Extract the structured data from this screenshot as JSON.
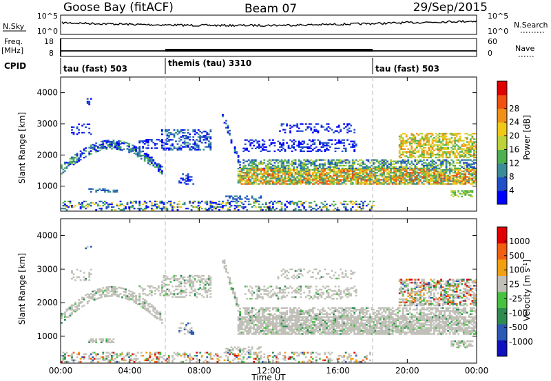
{
  "header": {
    "title": "Goose Bay (fitACF)",
    "beam": "Beam 07",
    "date": "29/Sep/2015"
  },
  "strip_labels": {
    "nsky": "N.Sky",
    "nsearch": "N.Search",
    "freq_top": "Freq.",
    "freq_unit": "[MHz]",
    "nave": "Nave",
    "cpid": "CPID"
  },
  "strip_ticks": {
    "nsky_top": "10^5",
    "nsky_bottom": "10^0",
    "nsearch_top": "10^5",
    "nsearch_bottom": "10^0",
    "freq_top": "18",
    "freq_bottom": "8",
    "nave_top": "60",
    "nave_bottom": "0"
  },
  "cpid_segments": [
    {
      "label": "tau (fast) 503",
      "start": "00:00",
      "end": "06:00"
    },
    {
      "label": "themis (tau) 3310",
      "start": "06:00",
      "end": "18:00"
    },
    {
      "label": "tau (fast) 503",
      "start": "18:00",
      "end": "00:00"
    }
  ],
  "chart_data": [
    {
      "type": "heatmap",
      "name": "power",
      "ylabel": "Slant Range [km]",
      "xlabel": "Time UT",
      "colorbar_label": "Power [dB]",
      "colorbar_ticks": [
        "4",
        "8",
        "12",
        "16",
        "20",
        "24",
        "28"
      ],
      "colorbar_colors": [
        "#0000ff",
        "#2050c8",
        "#3a8c96",
        "#4cb050",
        "#bcd238",
        "#f0c818",
        "#f09018",
        "#f05010",
        "#e00000"
      ],
      "yticks": [
        "1000",
        "2000",
        "3000",
        "4000"
      ],
      "ylim": [
        200,
        4500
      ],
      "xticks": [
        "00:00",
        "04:00",
        "08:00",
        "12:00",
        "16:00",
        "20:00",
        "00:00"
      ],
      "xlim_hours": [
        0,
        24
      ]
    },
    {
      "type": "heatmap",
      "name": "velocity",
      "ylabel": "Slant Range [km]",
      "xlabel": "Time UT",
      "colorbar_label": "Velocity [m s^-1]",
      "colorbar_ticks": [
        "1000",
        "500",
        "100",
        "25",
        "-25",
        "-100",
        "-500",
        "-1000"
      ],
      "colorbar_colors": [
        "#1010c0",
        "#2a5ab4",
        "#2e8c50",
        "#48c040",
        "#c0c0b8",
        "#f0a010",
        "#f06010",
        "#e00000"
      ],
      "yticks": [
        "1000",
        "2000",
        "3000",
        "4000"
      ],
      "ylim": [
        200,
        4500
      ],
      "xticks": [
        "00:00",
        "04:00",
        "08:00",
        "12:00",
        "16:00",
        "20:00",
        "00:00"
      ],
      "xlim_hours": [
        0,
        24
      ]
    }
  ]
}
